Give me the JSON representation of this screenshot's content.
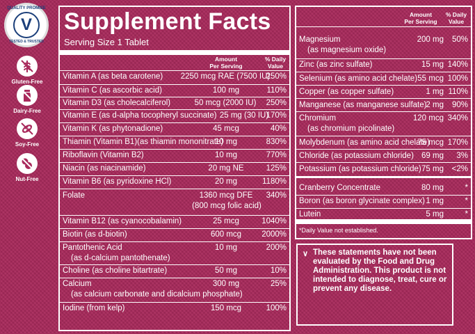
{
  "seal": {
    "top_text": "QUALITY PROMISE",
    "bottom_text": "TESTED & TRUSTED",
    "mark": "V"
  },
  "badges": [
    {
      "label": "Gluten-Free",
      "icon": "wheat-icon"
    },
    {
      "label": "Dairy-Free",
      "icon": "milk-bottle-icon"
    },
    {
      "label": "Soy-Free",
      "icon": "soybean-icon"
    },
    {
      "label": "Nut-Free",
      "icon": "peanut-icon"
    }
  ],
  "left_panel": {
    "title": "Supplement Facts",
    "serving": "Serving Size 1 Tablet",
    "col_amount": [
      "Amount",
      "Per Serving"
    ],
    "col_dv": [
      "% Daily",
      "Value"
    ],
    "rows": [
      {
        "name": "Vitamin A (as beta carotene)",
        "amount": "2250 mcg RAE (7500 IU)",
        "dv": "250%"
      },
      {
        "name": "Vitamin C (as ascorbic acid)",
        "amount": "100 mg",
        "dv": "110%"
      },
      {
        "name": "Vitamin D3 (as cholecalciferol)",
        "amount": "50 mcg (2000 IU)",
        "dv": "250%"
      },
      {
        "name": "Vitamin E (as d-alpha tocopheryl succinate)",
        "amount": "25 mg (30 IU)",
        "dv": "170%"
      },
      {
        "name": "Vitamin K (as phytonadione)",
        "amount": "45 mcg",
        "dv": "40%"
      },
      {
        "name": "Thiamin (Vitamin B1)(as thiamin mononitrate)",
        "amount": "10 mg",
        "dv": "830%"
      },
      {
        "name": "Riboflavin (Vitamin B2)",
        "amount": "10 mg",
        "dv": "770%"
      },
      {
        "name": "Niacin (as niacinamide)",
        "amount": "20 mg NE",
        "dv": "125%"
      },
      {
        "name": "Vitamin B6 (as pyridoxine HCl)",
        "amount": "20 mg",
        "dv": "1180%"
      },
      {
        "name": "Folate",
        "amount": "1360 mcg DFE",
        "amount2": "(800 mcg folic acid)",
        "dv": "340%"
      },
      {
        "name": "Vitamin B12 (as cyanocobalamin)",
        "amount": "25 mcg",
        "dv": "1040%"
      },
      {
        "name": "Biotin (as d-biotin)",
        "amount": "600 mcg",
        "dv": "2000%"
      },
      {
        "name": "Pantothenic Acid",
        "name2": "(as d-calcium pantothenate)",
        "amount": "10 mg",
        "dv": "200%"
      },
      {
        "name": "Choline (as choline bitartrate)",
        "amount": "50 mg",
        "dv": "10%"
      },
      {
        "name": "Calcium",
        "name2": "(as calcium carbonate and dicalcium phosphate)",
        "amount": "300 mg",
        "dv": "25%"
      },
      {
        "name": "Iodine (from kelp)",
        "amount": "150 mcg",
        "dv": "100%"
      }
    ]
  },
  "right_panel": {
    "col_amount": [
      "Amount",
      "Per Serving"
    ],
    "col_dv": [
      "% Daily",
      "Value"
    ],
    "rows": [
      {
        "name": "Magnesium",
        "name2": "(as magnesium oxide)",
        "amount": "200 mg",
        "dv": "50%"
      },
      {
        "name": "Zinc (as zinc sulfate)",
        "amount": "15 mg",
        "dv": "140%"
      },
      {
        "name": "Selenium (as amino acid chelate)",
        "amount": "55 mcg",
        "dv": "100%"
      },
      {
        "name": "Copper (as copper sulfate)",
        "amount": "1 mg",
        "dv": "110%"
      },
      {
        "name": "Manganese (as manganese sulfate)",
        "amount": "2 mg",
        "dv": "90%"
      },
      {
        "name": "Chromium",
        "name2": "(as chromium picolinate)",
        "amount": "120 mcg",
        "dv": "340%"
      },
      {
        "name": "Molybdenum (as amino acid chelate)",
        "amount": "75 mcg",
        "dv": "170%"
      },
      {
        "name": "Chloride (as potassium chloride)",
        "amount": "69 mg",
        "dv": "3%"
      },
      {
        "name": "Potassium (as potassium chloride)",
        "amount": "75 mg",
        "dv": "<2%"
      },
      {
        "name": "Cranberry Concentrate",
        "amount": "80 mg",
        "dv": "*"
      },
      {
        "name": "Boron (as boron glycinate complex)",
        "amount": "1 mg",
        "dv": "*"
      },
      {
        "name": "Lutein",
        "amount": "5 mg",
        "dv": "*"
      }
    ],
    "footnote": "*Daily Value not established."
  },
  "disclaimer": {
    "arrow": "∨",
    "text": "These statements have not been evaluated by the Food and Drug Administration. This product is not intended to diagnose, treat, cure or prevent any disease."
  }
}
